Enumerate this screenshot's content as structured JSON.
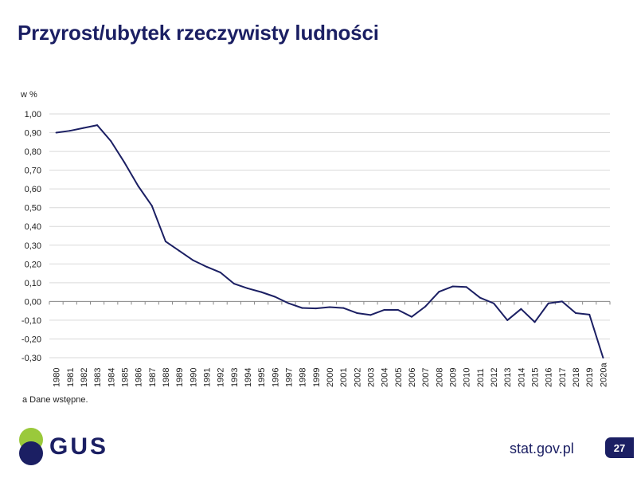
{
  "title": "Przyrost/ubytek rzeczywisty ludności",
  "footnote": "a Dane wstępne.",
  "logo_text": "GUS",
  "site": "stat.gov.pl",
  "page_number": "27",
  "colors": {
    "navy": "#1b1f63",
    "green": "#9ac93b",
    "line": "#1b1f63",
    "grid": "#d9d9d9"
  },
  "chart_data": {
    "type": "line",
    "ylabel": "w %",
    "ylim": [
      -0.3,
      1.0
    ],
    "ytick_step": 0.1,
    "y_tick_labels": [
      "1,00",
      "0,90",
      "0,80",
      "0,70",
      "0,60",
      "0,50",
      "0,40",
      "0,30",
      "0,20",
      "0,10",
      "0,00",
      "-0,10",
      "-0,20",
      "-0,30"
    ],
    "grid": true,
    "legend": "none",
    "categories": [
      "1980",
      "1981",
      "1982",
      "1983",
      "1984",
      "1985",
      "1986",
      "1987",
      "1988",
      "1989",
      "1990",
      "1991",
      "1992",
      "1993",
      "1994",
      "1995",
      "1996",
      "1997",
      "1998",
      "1999",
      "2000",
      "2001",
      "2002",
      "2003",
      "2004",
      "2005",
      "2006",
      "2007",
      "2008",
      "2009",
      "2010",
      "2011",
      "2012",
      "2013",
      "2014",
      "2015",
      "2016",
      "2017",
      "2018",
      "2019",
      "2020a"
    ],
    "series": [
      {
        "values": [
          0.9,
          0.91,
          0.925,
          0.94,
          0.855,
          0.74,
          0.615,
          0.51,
          0.32,
          0.27,
          0.22,
          0.185,
          0.155,
          0.095,
          0.07,
          0.05,
          0.025,
          -0.01,
          -0.035,
          -0.037,
          -0.03,
          -0.035,
          -0.062,
          -0.072,
          -0.045,
          -0.045,
          -0.082,
          -0.027,
          0.052,
          0.08,
          0.077,
          0.02,
          -0.01,
          -0.1,
          -0.04,
          -0.11,
          -0.01,
          0.0,
          -0.062,
          -0.07,
          -0.3
        ]
      }
    ]
  }
}
